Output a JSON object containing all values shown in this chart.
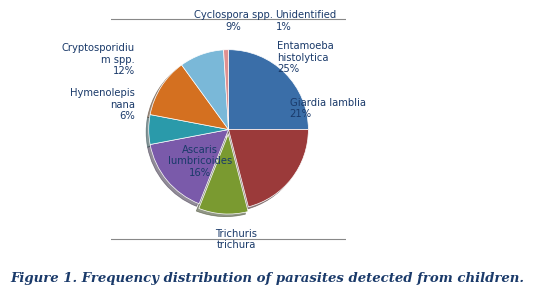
{
  "labels_display": [
    "Entamoeba\nhistolytica\n25%",
    "Giardia lamblia\n21%",
    "Trichuris\ntrichura",
    "Ascaris\nlumbricoides\n16%",
    "Hymenolepis\nnana\n6%",
    "Cryptosporidiu\nm spp.\n12%",
    "Cyclospora spp.\n9%",
    "Unidentified\n1%"
  ],
  "values": [
    25,
    21,
    10,
    16,
    6,
    12,
    9,
    1
  ],
  "colors": [
    "#3a6ea8",
    "#9b3a3a",
    "#7a9a30",
    "#7a5aaa",
    "#2a9aaa",
    "#d47020",
    "#7ab8d8",
    "#e09090"
  ],
  "shadow_colors": [
    "#1a3e70",
    "#601a1a",
    "#4a6a10",
    "#4a2a7a",
    "#006a7a",
    "#904000",
    "#4a80a8",
    "#b06060"
  ],
  "explode": [
    0.0,
    0.0,
    0.05,
    0.0,
    0.0,
    0.0,
    0.0,
    0.0
  ],
  "startangle": 90,
  "caption": "Figure 1. Frequency distribution of parasites detected from children.",
  "label_fontsize": 7.2,
  "caption_fontsize": 9.5,
  "label_color": "#1a3a6a"
}
